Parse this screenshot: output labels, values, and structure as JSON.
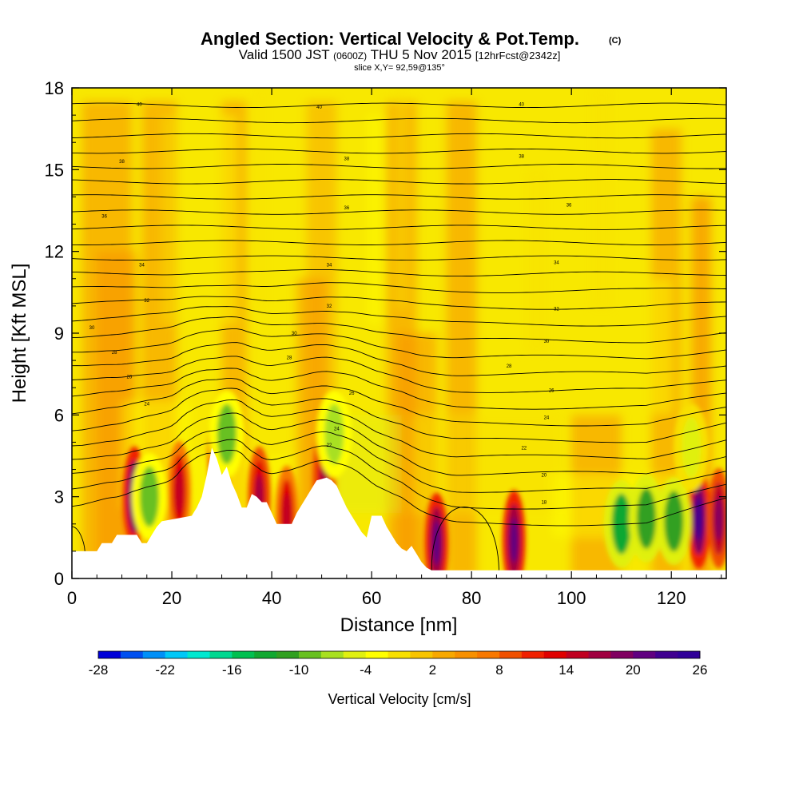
{
  "header": {
    "title": "Angled Section: Vertical Velocity & Pot.Temp.",
    "copyright": "(C)",
    "valid_prefix": "Valid 1500 JST",
    "valid_utc": "(0600Z)",
    "valid_date": "THU 5 Nov 2015",
    "forecast": "[12hrFcst@2342z]",
    "slice": "slice X,Y= 92,59@135°"
  },
  "chart_data": {
    "type": "heatmap",
    "title": "Angled Section: Vertical Velocity & Pot.Temp.",
    "xlabel": "Distance [nm]",
    "ylabel": "Height [Kft MSL]",
    "xlim": [
      0,
      131
    ],
    "ylim": [
      0,
      18
    ],
    "x_ticks": [
      0,
      20,
      40,
      60,
      80,
      100,
      120
    ],
    "y_ticks": [
      0,
      3,
      6,
      9,
      12,
      15,
      18
    ],
    "colorbar": {
      "label": "Vertical Velocity [cm/s]",
      "tick_labels": [
        -28,
        -22,
        -16,
        -10,
        -4,
        2,
        8,
        14,
        20,
        26
      ],
      "min": -28,
      "max": 26,
      "step": 2,
      "colors": [
        "#0000d8",
        "#0050f0",
        "#0090f8",
        "#00c8f8",
        "#00e8d0",
        "#00d890",
        "#00c050",
        "#10a830",
        "#30a020",
        "#68c020",
        "#a8e020",
        "#e0f010",
        "#ffff00",
        "#f8e000",
        "#f8c400",
        "#f8a800",
        "#f89000",
        "#f87800",
        "#f05000",
        "#f02000",
        "#e00000",
        "#c00020",
        "#a00040",
        "#800060",
        "#600080",
        "#400090",
        "#300098"
      ]
    },
    "background_value_cm_s": 2,
    "terrain": [
      [
        0,
        1.0
      ],
      [
        5,
        1.0
      ],
      [
        6,
        1.3
      ],
      [
        8,
        1.3
      ],
      [
        9,
        1.6
      ],
      [
        13,
        1.6
      ],
      [
        14,
        1.3
      ],
      [
        15,
        1.3
      ],
      [
        16,
        1.6
      ],
      [
        17,
        1.9
      ],
      [
        18,
        2.1
      ],
      [
        24,
        2.3
      ],
      [
        25,
        2.6
      ],
      [
        26,
        3.0
      ],
      [
        27,
        3.8
      ],
      [
        28,
        4.8
      ],
      [
        29,
        4.4
      ],
      [
        30,
        3.8
      ],
      [
        31,
        4.1
      ],
      [
        32,
        3.5
      ],
      [
        33,
        3.1
      ],
      [
        34,
        2.6
      ],
      [
        35,
        2.6
      ],
      [
        36,
        3.1
      ],
      [
        37,
        3.0
      ],
      [
        38,
        2.8
      ],
      [
        39,
        2.8
      ],
      [
        40,
        2.4
      ],
      [
        41,
        2.0
      ],
      [
        44,
        2.0
      ],
      [
        45,
        2.4
      ],
      [
        46,
        2.7
      ],
      [
        47,
        3.0
      ],
      [
        48,
        3.3
      ],
      [
        49,
        3.6
      ],
      [
        51,
        3.7
      ],
      [
        52,
        3.6
      ],
      [
        53,
        3.4
      ],
      [
        54,
        3.0
      ],
      [
        55,
        2.6
      ],
      [
        56,
        2.3
      ],
      [
        57,
        2.0
      ],
      [
        58,
        1.7
      ],
      [
        59,
        1.5
      ],
      [
        60,
        2.3
      ],
      [
        62,
        2.3
      ],
      [
        63,
        1.9
      ],
      [
        64,
        1.6
      ],
      [
        65,
        1.3
      ],
      [
        66,
        1.1
      ],
      [
        67,
        1.0
      ],
      [
        68,
        1.2
      ],
      [
        69,
        0.9
      ],
      [
        70,
        0.6
      ],
      [
        71,
        0.4
      ],
      [
        72,
        0.3
      ],
      [
        73,
        0.3
      ],
      [
        131,
        0.3
      ]
    ],
    "updrafts": [
      {
        "x": 12.5,
        "y": 3.0,
        "value": 22
      },
      {
        "x": 21.5,
        "y": 3.2,
        "value": 14
      },
      {
        "x": 29.5,
        "y": 4.6,
        "value": 16
      },
      {
        "x": 37.5,
        "y": 3.0,
        "value": 16
      },
      {
        "x": 43.0,
        "y": 2.3,
        "value": 14
      },
      {
        "x": 50.5,
        "y": 3.7,
        "value": 16
      },
      {
        "x": 73.0,
        "y": 1.3,
        "value": 20
      },
      {
        "x": 88.5,
        "y": 1.4,
        "value": 20
      },
      {
        "x": 125.5,
        "y": 2.2,
        "value": 22
      },
      {
        "x": 129.5,
        "y": 2.2,
        "value": 18
      }
    ],
    "downdrafts": [
      {
        "x": 15.5,
        "y": 3.0,
        "value": -10
      },
      {
        "x": 31.0,
        "y": 5.3,
        "value": -10
      },
      {
        "x": 52.5,
        "y": 5.3,
        "value": -8
      },
      {
        "x": 110.0,
        "y": 2.0,
        "value": -14
      },
      {
        "x": 115.0,
        "y": 2.2,
        "value": -12
      },
      {
        "x": 120.5,
        "y": 2.1,
        "value": -12
      },
      {
        "x": 124.0,
        "y": 4.8,
        "value": -6
      }
    ],
    "theta_contours": {
      "labels": [
        {
          "x": 13.5,
          "y": 17.4,
          "text": "40"
        },
        {
          "x": 49.5,
          "y": 17.3,
          "text": "40"
        },
        {
          "x": 90.0,
          "y": 17.4,
          "text": "40"
        },
        {
          "x": 10.0,
          "y": 15.3,
          "text": "38"
        },
        {
          "x": 55.0,
          "y": 15.4,
          "text": "38"
        },
        {
          "x": 90.0,
          "y": 15.5,
          "text": "38"
        },
        {
          "x": 6.5,
          "y": 13.3,
          "text": "36"
        },
        {
          "x": 55.0,
          "y": 13.6,
          "text": "36"
        },
        {
          "x": 99.5,
          "y": 13.7,
          "text": "36"
        },
        {
          "x": 14.0,
          "y": 11.5,
          "text": "34"
        },
        {
          "x": 51.5,
          "y": 11.5,
          "text": "34"
        },
        {
          "x": 97.0,
          "y": 11.6,
          "text": "34"
        },
        {
          "x": 15.0,
          "y": 10.2,
          "text": "32"
        },
        {
          "x": 51.5,
          "y": 10.0,
          "text": "32"
        },
        {
          "x": 97.0,
          "y": 9.9,
          "text": "32"
        },
        {
          "x": 4.0,
          "y": 9.2,
          "text": "30"
        },
        {
          "x": 44.5,
          "y": 9.0,
          "text": "30"
        },
        {
          "x": 95.0,
          "y": 8.7,
          "text": "30"
        },
        {
          "x": 8.5,
          "y": 8.3,
          "text": "28"
        },
        {
          "x": 43.5,
          "y": 8.1,
          "text": "28"
        },
        {
          "x": 87.5,
          "y": 7.8,
          "text": "28"
        },
        {
          "x": 11.5,
          "y": 7.4,
          "text": "26"
        },
        {
          "x": 56.0,
          "y": 6.8,
          "text": "26"
        },
        {
          "x": 96.0,
          "y": 6.9,
          "text": "26"
        },
        {
          "x": 15.0,
          "y": 6.4,
          "text": "24"
        },
        {
          "x": 53.0,
          "y": 5.5,
          "text": "24"
        },
        {
          "x": 95.0,
          "y": 5.9,
          "text": "24"
        },
        {
          "x": 51.5,
          "y": 4.9,
          "text": "22"
        },
        {
          "x": 90.5,
          "y": 4.8,
          "text": "22"
        },
        {
          "x": 94.5,
          "y": 3.8,
          "text": "20"
        },
        {
          "x": 94.5,
          "y": 2.8,
          "text": "18"
        }
      ]
    }
  }
}
